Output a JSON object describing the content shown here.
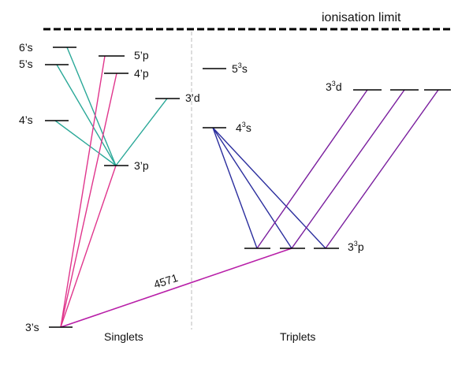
{
  "ionisation_label": "ionisation limit",
  "singlets_label": "Singlets",
  "triplets_label": "Triplets",
  "transition_label": "4571",
  "levels": {
    "s1_6s": {
      "main": "6",
      "sup": "",
      "tail": "’s"
    },
    "s1_5s": {
      "main": "5",
      "sup": "",
      "tail": "’s"
    },
    "s1_4s": {
      "main": "4",
      "sup": "",
      "tail": "’s"
    },
    "s1_3s": {
      "main": "3",
      "sup": "",
      "tail": "’s"
    },
    "s1_5p": {
      "main": "5",
      "sup": "",
      "tail": "’p"
    },
    "s1_4p": {
      "main": "4",
      "sup": "",
      "tail": "’p"
    },
    "s1_3p": {
      "main": "3",
      "sup": "",
      "tail": "’p"
    },
    "s1_3d": {
      "main": "3",
      "sup": "",
      "tail": "’d"
    },
    "t_5s": {
      "main": "5",
      "sup": "3",
      "tail": "s"
    },
    "t_4s": {
      "main": "4",
      "sup": "3",
      "tail": "s"
    },
    "t_3d": {
      "main": "3",
      "sup": "3",
      "tail": "d"
    },
    "t_3p": {
      "main": "3",
      "sup": "3",
      "tail": "p"
    }
  },
  "colors": {
    "level_line": "#000000",
    "divider": "#bbbbbb",
    "s_to_p": "#2aa898",
    "p_to_3s": "#e0358c",
    "triplet_s_to_p": "#2b2e9e",
    "triplet_d_to_p": "#7a1e9e",
    "intercombination": "#b81fa8"
  }
}
